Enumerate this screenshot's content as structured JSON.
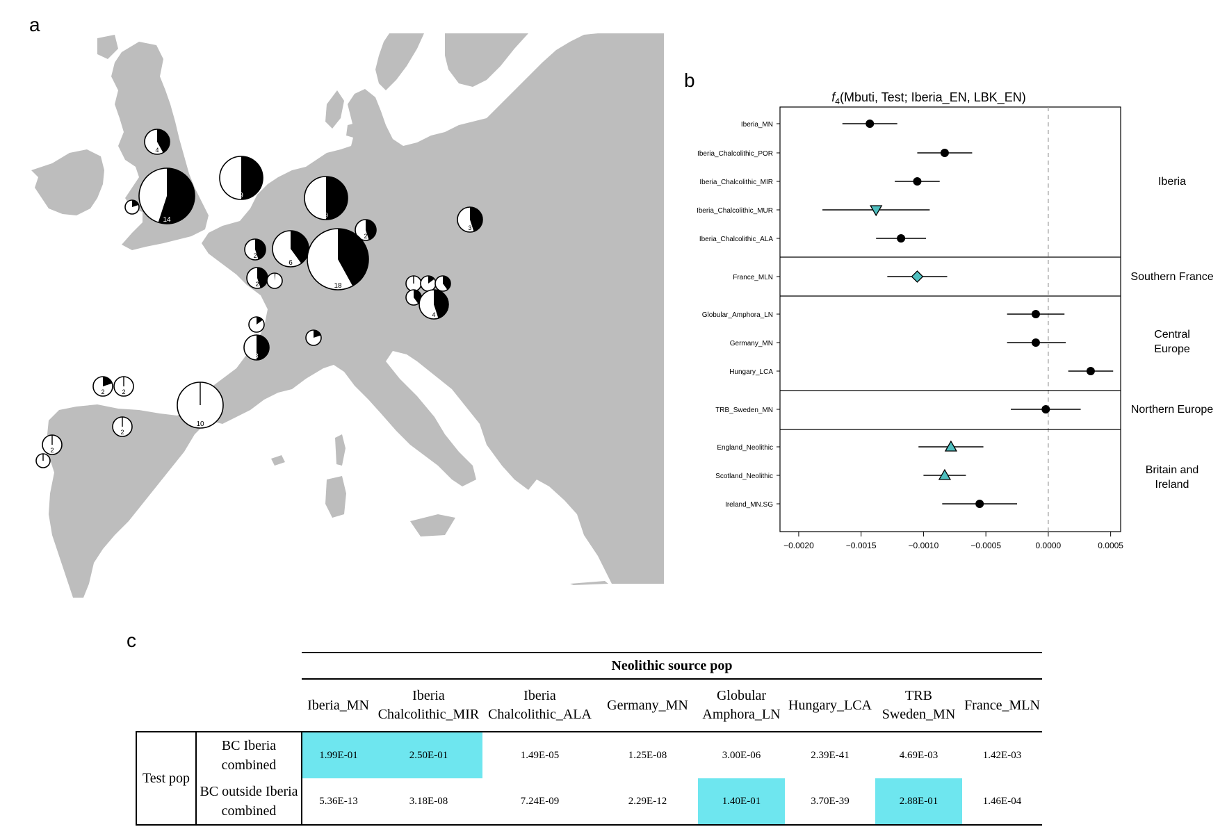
{
  "panels": {
    "a": "a",
    "b": "b",
    "c": "c"
  },
  "colors": {
    "land": "#bdbdbd",
    "sea": "#ffffff",
    "pie_dark": "#000000",
    "marker_teal": "#4fbfbf",
    "highlight": "#6ee6ef"
  },
  "map": {
    "pies": [
      {
        "label": "4",
        "dark_fraction": 0.42
      },
      {
        "label": "14",
        "dark_fraction": 0.55
      },
      {
        "label": "",
        "dark_fraction": 0.2
      },
      {
        "label": "9",
        "dark_fraction": 0.5
      },
      {
        "label": "9",
        "dark_fraction": 0.5
      },
      {
        "label": "3",
        "dark_fraction": 0.45
      },
      {
        "label": "2",
        "dark_fraction": 0.45
      },
      {
        "label": "2",
        "dark_fraction": 0.45
      },
      {
        "label": "6",
        "dark_fraction": 0.4
      },
      {
        "label": "18",
        "dark_fraction": 0.42
      },
      {
        "label": "2",
        "dark_fraction": 0.45
      },
      {
        "label": "",
        "dark_fraction": 0.02
      },
      {
        "label": "",
        "dark_fraction": 0.15
      },
      {
        "label": "3",
        "dark_fraction": 0.5
      },
      {
        "label": "",
        "dark_fraction": 0.2
      },
      {
        "label": "",
        "dark_fraction": 0.0
      },
      {
        "label": "",
        "dark_fraction": 0.15
      },
      {
        "label": "",
        "dark_fraction": 0.4
      },
      {
        "label": "",
        "dark_fraction": 0.4
      },
      {
        "label": "4",
        "dark_fraction": 0.45
      },
      {
        "label": "2",
        "dark_fraction": 0.2
      },
      {
        "label": "2",
        "dark_fraction": 0.0
      },
      {
        "label": "10",
        "dark_fraction": 0.0
      },
      {
        "label": "2",
        "dark_fraction": 0.0
      },
      {
        "label": "2",
        "dark_fraction": 0.0
      },
      {
        "label": "",
        "dark_fraction": 0.0
      }
    ]
  },
  "chart_data": {
    "type": "scatter",
    "title_prefix": "f",
    "title_sub": "4",
    "title_rest": "(Mbuti, Test; Iberia_EN, LBK_EN)",
    "xlim": [
      -0.00215,
      0.00058
    ],
    "x_ticks": [
      -0.002,
      -0.0015,
      -0.001,
      -0.0005,
      0.0,
      0.0005
    ],
    "x_tick_labels": [
      "−0.0020",
      "−0.0015",
      "−0.0010",
      "−0.0005",
      "0.0000",
      "0.0005"
    ],
    "reference_line": 0.0,
    "groups": [
      {
        "name": "Iberia",
        "points": [
          {
            "label": "Iberia_MN",
            "x": -0.00143,
            "lo": -0.00165,
            "hi": -0.00121,
            "marker": "circle"
          },
          {
            "label": "Iberia_Chalcolithic_POR",
            "x": -0.00083,
            "lo": -0.00105,
            "hi": -0.00061,
            "marker": "circle"
          },
          {
            "label": "Iberia_Chalcolithic_MIR",
            "x": -0.00105,
            "lo": -0.00123,
            "hi": -0.00087,
            "marker": "circle"
          },
          {
            "label": "Iberia_Chalcolithic_MUR",
            "x": -0.00138,
            "lo": -0.00181,
            "hi": -0.00095,
            "marker": "triangle-down"
          },
          {
            "label": "Iberia_Chalcolithic_ALA",
            "x": -0.00118,
            "lo": -0.00138,
            "hi": -0.00098,
            "marker": "circle"
          }
        ]
      },
      {
        "name": "Southern France",
        "points": [
          {
            "label": "France_MLN",
            "x": -0.00105,
            "lo": -0.00129,
            "hi": -0.00081,
            "marker": "diamond"
          }
        ]
      },
      {
        "name": "Central Europe",
        "points": [
          {
            "label": "Globular_Amphora_LN",
            "x": -0.0001,
            "lo": -0.00033,
            "hi": 0.00013,
            "marker": "circle"
          },
          {
            "label": "Germany_MN",
            "x": -0.0001,
            "lo": -0.00033,
            "hi": 0.00014,
            "marker": "circle"
          },
          {
            "label": "Hungary_LCA",
            "x": 0.00034,
            "lo": 0.00016,
            "hi": 0.00052,
            "marker": "circle"
          }
        ]
      },
      {
        "name": "Northern Europe",
        "points": [
          {
            "label": "TRB_Sweden_MN",
            "x": -2e-05,
            "lo": -0.0003,
            "hi": 0.00026,
            "marker": "circle"
          }
        ]
      },
      {
        "name": "Britain and Ireland",
        "points": [
          {
            "label": "England_Neolithic",
            "x": -0.00078,
            "lo": -0.00104,
            "hi": -0.00052,
            "marker": "triangle-up"
          },
          {
            "label": "Scotland_Neolithic",
            "x": -0.00083,
            "lo": -0.001,
            "hi": -0.00066,
            "marker": "triangle-up"
          },
          {
            "label": "Ireland_MN.SG",
            "x": -0.00055,
            "lo": -0.00085,
            "hi": -0.00025,
            "marker": "circle"
          }
        ]
      }
    ]
  },
  "group_labels": [
    {
      "lines": [
        "Iberia"
      ]
    },
    {
      "lines": [
        "Southern France"
      ]
    },
    {
      "lines": [
        "Central",
        "Europe"
      ]
    },
    {
      "lines": [
        "Northern Europe"
      ]
    },
    {
      "lines": [
        "Britain and",
        "Ireland"
      ]
    }
  ],
  "table": {
    "title": "Neolithic source pop",
    "columns": [
      [
        "Iberia_MN"
      ],
      [
        "Iberia",
        "Chalcolithic_MIR"
      ],
      [
        "Iberia",
        "Chalcolithic_ALA"
      ],
      [
        "Germany_MN"
      ],
      [
        "Globular",
        "Amphora_LN"
      ],
      [
        "Hungary_LCA"
      ],
      [
        "TRB",
        "Sweden_MN"
      ],
      [
        "France_MLN"
      ]
    ],
    "test_pop_label": "Test pop",
    "rows": [
      {
        "label": [
          "BC Iberia",
          "combined"
        ],
        "values": [
          "1.99E-01",
          "2.50E-01",
          "1.49E-05",
          "1.25E-08",
          "3.00E-06",
          "2.39E-41",
          "4.69E-03",
          "1.42E-03"
        ],
        "highlight": [
          true,
          true,
          false,
          false,
          false,
          false,
          false,
          false
        ]
      },
      {
        "label": [
          "BC outside Iberia",
          "combined"
        ],
        "values": [
          "5.36E-13",
          "3.18E-08",
          "7.24E-09",
          "2.29E-12",
          "1.40E-01",
          "3.70E-39",
          "2.88E-01",
          "1.46E-04"
        ],
        "highlight": [
          false,
          false,
          false,
          false,
          true,
          false,
          true,
          false
        ]
      }
    ]
  }
}
